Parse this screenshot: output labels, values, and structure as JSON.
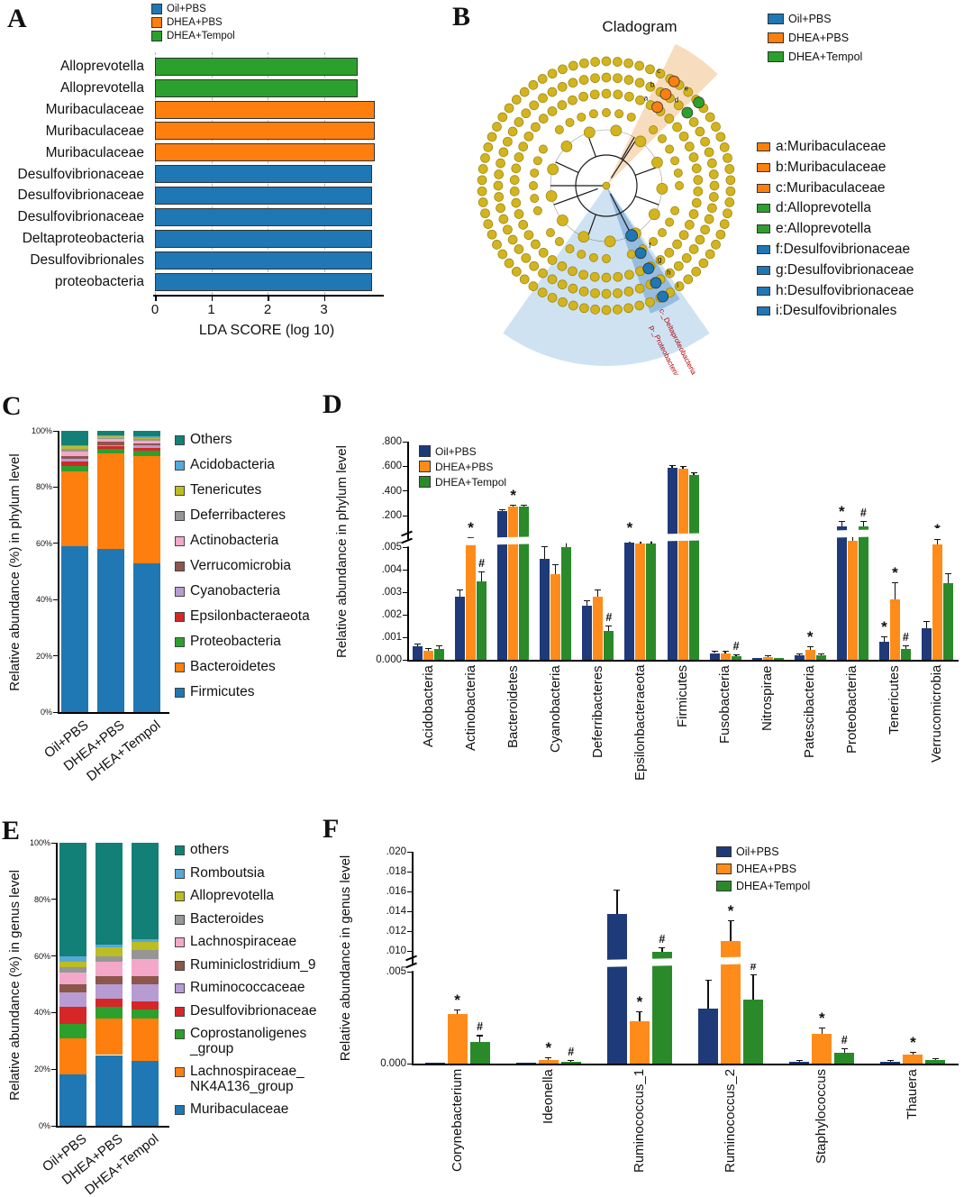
{
  "groups": [
    {
      "name": "Oil+PBS",
      "color": "#1f77b4",
      "bar_color": "#1e3a78"
    },
    {
      "name": "DHEA+PBS",
      "color": "#ff7f0e",
      "bar_color": "#ff8c1a"
    },
    {
      "name": "DHEA+Tempol",
      "color": "#2ca02c",
      "bar_color": "#2a8a2a"
    }
  ],
  "chart_data": [
    {
      "panel": "A",
      "type": "bar",
      "orientation": "horizontal",
      "xlabel": "LDA SCORE (log 10)",
      "xlim": [
        0,
        4
      ],
      "xticks": [
        0,
        1,
        2,
        3
      ],
      "legend": [
        "Oil+PBS",
        "DHEA+PBS",
        "DHEA+Tempol"
      ],
      "bars": [
        {
          "taxon": "Alloprevotella",
          "group": "DHEA+Tempol",
          "lda": 3.6
        },
        {
          "taxon": "Alloprevotella",
          "group": "DHEA+Tempol",
          "lda": 3.6
        },
        {
          "taxon": "Muribaculaceae",
          "group": "DHEA+PBS",
          "lda": 3.9
        },
        {
          "taxon": "Muribaculaceae",
          "group": "DHEA+PBS",
          "lda": 3.9
        },
        {
          "taxon": "Muribaculaceae",
          "group": "DHEA+PBS",
          "lda": 3.9
        },
        {
          "taxon": "Desulfovibrionaceae",
          "group": "Oil+PBS",
          "lda": 3.85
        },
        {
          "taxon": "Desulfovibrionaceae",
          "group": "Oil+PBS",
          "lda": 3.85
        },
        {
          "taxon": "Desulfovibrionaceae",
          "group": "Oil+PBS",
          "lda": 3.85
        },
        {
          "taxon": "Deltaproteobacteria",
          "group": "Oil+PBS",
          "lda": 3.85
        },
        {
          "taxon": "Desulfovibrionales",
          "group": "Oil+PBS",
          "lda": 3.85
        },
        {
          "taxon": "proteobacteria",
          "group": "Oil+PBS",
          "lda": 3.85
        }
      ]
    },
    {
      "panel": "B",
      "type": "cladogram",
      "title": "Cladogram",
      "legend": [
        "Oil+PBS",
        "DHEA+PBS",
        "DHEA+Tempol"
      ],
      "nodes": [
        {
          "letter": "a",
          "taxon": "Muribaculaceae",
          "group": "DHEA+PBS"
        },
        {
          "letter": "b",
          "taxon": "Muribaculaceae",
          "group": "DHEA+PBS"
        },
        {
          "letter": "c",
          "taxon": "Muribaculaceae",
          "group": "DHEA+PBS"
        },
        {
          "letter": "d",
          "taxon": "Alloprevotella",
          "group": "DHEA+Tempol"
        },
        {
          "letter": "e",
          "taxon": "Alloprevotella",
          "group": "DHEA+Tempol"
        },
        {
          "letter": "f",
          "taxon": "Desulfovibrionaceae",
          "group": "Oil+PBS"
        },
        {
          "letter": "g",
          "taxon": "Desulfovibrionaceae",
          "group": "Oil+PBS"
        },
        {
          "letter": "h",
          "taxon": "Desulfovibrionaceae",
          "group": "Oil+PBS"
        },
        {
          "letter": "i",
          "taxon": "Desulfovibrionales",
          "group": "Oil+PBS"
        }
      ],
      "red_labels": [
        "c-_Deltaproteobacteria",
        "p-_Proteobacteria"
      ]
    },
    {
      "panel": "C",
      "type": "bar",
      "subtype": "stacked",
      "ylabel": "Relative abundance (%) in phylum level",
      "categories": [
        "Oil+PBS",
        "DHEA+PBS",
        "DHEA+Tempol"
      ],
      "ytick_labels": [
        "0%",
        "20%",
        "40%",
        "60%",
        "80%",
        "100%"
      ],
      "series": [
        {
          "name": "Firmicutes",
          "color": "#1f77b4",
          "values": [
            59,
            58,
            53
          ]
        },
        {
          "name": "Bacteroidetes",
          "color": "#ff7f0e",
          "values": [
            26.5,
            34,
            38
          ]
        },
        {
          "name": "Proteobacteria",
          "color": "#2ca02c",
          "values": [
            2,
            1.5,
            2
          ]
        },
        {
          "name": "Epsilonbacteraeota",
          "color": "#d62728",
          "values": [
            1.5,
            1,
            1
          ]
        },
        {
          "name": "Cyanobacteria",
          "color": "#b79cd4",
          "values": [
            1,
            0.5,
            1
          ]
        },
        {
          "name": "Verrucomicrobia",
          "color": "#8c564b",
          "values": [
            1,
            1,
            0.5
          ]
        },
        {
          "name": "Actinobacteria",
          "color": "#f3a8c9",
          "values": [
            1.5,
            1,
            1
          ]
        },
        {
          "name": "Deferribacteres",
          "color": "#969696",
          "values": [
            1,
            0.5,
            0.5
          ]
        },
        {
          "name": "Tenericutes",
          "color": "#bcbd22",
          "values": [
            1,
            0.5,
            0.5
          ]
        },
        {
          "name": "Acidobacteria",
          "color": "#56a8d8",
          "values": [
            0.5,
            0.5,
            0.5
          ]
        },
        {
          "name": "Others",
          "color": "#128076",
          "values": [
            5,
            1.5,
            2
          ]
        }
      ]
    },
    {
      "panel": "D",
      "type": "bar",
      "subtype": "grouped-broken-axis",
      "ylabel": "Relative abundance in phylum level",
      "legend": [
        "Oil+PBS",
        "DHEA+PBS",
        "DHEA+Tempol"
      ],
      "lower_axis": {
        "tick_values": [
          0,
          0.001,
          0.002,
          0.003,
          0.004,
          0.005
        ],
        "tick_labels": [
          "0.000",
          ".001",
          ".002",
          ".003",
          ".004",
          ".005"
        ]
      },
      "upper_axis": {
        "tick_values": [
          0.2,
          0.4,
          0.6,
          0.8
        ],
        "tick_labels": [
          ".200",
          ".400",
          ".600",
          ".800"
        ]
      },
      "categories": [
        "Acidobacteria",
        "Actinobacteria",
        "Bacteroidetes",
        "Cyanobacteria",
        "Deferribacteres",
        "Epsilonbacteraeota",
        "Firmicutes",
        "Fusobacteria",
        "Nitrospirae",
        "Patescibacteria",
        "Proteobacteria",
        "Tenericutes",
        "Verrucomicrobia"
      ],
      "series": [
        {
          "name": "Oil+PBS",
          "values": [
            0.0006,
            0.0028,
            0.235,
            0.0045,
            0.0024,
            0.0055,
            0.59,
            0.0003,
            0.0001,
            0.0002,
            0.016,
            0.0008,
            0.0014
          ],
          "errors": [
            0.0001,
            0.0003,
            0.01,
            0.0005,
            0.0002,
            0.0003,
            0.015,
            7e-05,
            3e-05,
            5e-05,
            0.003,
            0.0002,
            0.0003
          ]
        },
        {
          "name": "DHEA+PBS",
          "values": [
            0.0004,
            0.0055,
            0.27,
            0.0038,
            0.0028,
            0.0053,
            0.58,
            0.0003,
            0.00012,
            0.00045,
            0.006,
            0.0027,
            0.0052
          ],
          "errors": [
            8e-05,
            0.0004,
            0.012,
            0.0004,
            0.0003,
            0.0002,
            0.015,
            8e-05,
            4e-05,
            0.0001,
            0.0008,
            0.0007,
            0.0005
          ]
        },
        {
          "name": "DHEA+Tempol",
          "values": [
            0.0005,
            0.0035,
            0.27,
            0.005,
            0.0013,
            0.0053,
            0.53,
            0.00015,
            0.0001,
            0.0002,
            0.016,
            0.0005,
            0.0034
          ],
          "errors": [
            0.0001,
            0.0004,
            0.01,
            0.0003,
            0.0002,
            0.0002,
            0.015,
            4e-05,
            3e-05,
            5e-05,
            0.003,
            0.0001,
            0.0004
          ]
        }
      ],
      "annotations": [
        {
          "category": "Actinobacteria",
          "series": "DHEA+PBS",
          "symbol": "*"
        },
        {
          "category": "Actinobacteria",
          "series": "DHEA+Tempol",
          "symbol": "#"
        },
        {
          "category": "Bacteroidetes",
          "series": "DHEA+PBS",
          "symbol": "*"
        },
        {
          "category": "Deferribacteres",
          "series": "DHEA+Tempol",
          "symbol": "#"
        },
        {
          "category": "Epsilonbacteraeota",
          "series": "Oil+PBS",
          "symbol": "*"
        },
        {
          "category": "Fusobacteria",
          "series": "DHEA+Tempol",
          "symbol": "#"
        },
        {
          "category": "Patescibacteria",
          "series": "DHEA+PBS",
          "symbol": "*"
        },
        {
          "category": "Patescibacteria",
          "series": "DHEA+T empol",
          "symbol": "#"
        },
        {
          "category": "Proteobacteria",
          "series": "Oil+PBS",
          "symbol": "*"
        },
        {
          "category": "Proteobacteria",
          "series": "DHEA+Tempol",
          "symbol": "#"
        },
        {
          "category": "Tenericutes",
          "series": "Oil+PBS",
          "symbol": "*"
        },
        {
          "category": "Tenericutes",
          "series": "DHEA+PBS",
          "symbol": "*"
        },
        {
          "category": "Tenericutes",
          "series": "DHEA+Tempol",
          "symbol": "#"
        },
        {
          "category": "Verrucomicrobia",
          "series": "DHEA+PBS",
          "symbol": "*"
        }
      ]
    },
    {
      "panel": "E",
      "type": "bar",
      "subtype": "stacked",
      "ylabel": "Relative abundance (%) in genus level",
      "categories": [
        "Oil+PBS",
        "DHEA+PBS",
        "DHEA+Tempol"
      ],
      "ytick_labels": [
        "0%",
        "20%",
        "40%",
        "60%",
        "80%",
        "100%"
      ],
      "series": [
        {
          "name": "Muribaculaceae",
          "color": "#1f77b4",
          "values": [
            18,
            25,
            23
          ]
        },
        {
          "name": "Lachnospiraceae_NK4A136_group",
          "legend_label": "Lachnospiraceae_\nNK4A136_group",
          "color": "#ff7f0e",
          "values": [
            13,
            13,
            15
          ]
        },
        {
          "name": "Coprostanoligenes_group",
          "legend_label": "Coprostanoligenes\n_group",
          "color": "#2ca02c",
          "values": [
            5,
            4,
            3
          ]
        },
        {
          "name": "Desulfovibrionaceae",
          "color": "#d62728",
          "values": [
            6,
            3,
            3
          ]
        },
        {
          "name": "Ruminococcaceae",
          "color": "#b79cd4",
          "values": [
            5,
            5,
            6
          ]
        },
        {
          "name": "Ruminiclostridium_9",
          "color": "#8c564b",
          "values": [
            3,
            3,
            3
          ]
        },
        {
          "name": "Lachnospiraceae",
          "color": "#f3a8c9",
          "values": [
            4,
            5,
            6
          ]
        },
        {
          "name": "Bacteroides",
          "color": "#969696",
          "values": [
            2,
            2,
            3
          ]
        },
        {
          "name": "Alloprevotella",
          "color": "#bcbd22",
          "values": [
            2,
            3,
            3
          ]
        },
        {
          "name": "Romboutsia",
          "color": "#56a8d8",
          "values": [
            2,
            1,
            1
          ]
        },
        {
          "name": "others",
          "color": "#128076",
          "values": [
            40,
            36,
            34
          ]
        }
      ]
    },
    {
      "panel": "F",
      "type": "bar",
      "subtype": "grouped-broken-axis",
      "ylabel": "Relative abundance in genus level",
      "legend": [
        "Oil+PBS",
        "DHEA+PBS",
        "DHEA+Tempol"
      ],
      "lower_axis": {
        "tick_values": [
          0,
          0.005
        ],
        "tick_labels": [
          "0.000",
          ".005"
        ]
      },
      "upper_axis": {
        "tick_values": [
          0.01,
          0.012,
          0.014,
          0.016,
          0.018,
          0.02
        ],
        "tick_labels": [
          ".010",
          ".012",
          ".014",
          ".016",
          ".018",
          ".020"
        ]
      },
      "categories": [
        "Corynebacterium",
        "Ideonella",
        "Ruminococcus_1",
        "Ruminococcus_2",
        "Staphylococcus",
        "Thauera"
      ],
      "series": [
        {
          "name": "Oil+PBS",
          "values": [
            5e-05,
            4e-05,
            0.0137,
            0.003,
            0.0001,
            0.0001
          ],
          "errors": [
            2e-05,
            2e-05,
            0.0024,
            0.0015,
            5e-05,
            5e-05
          ]
        },
        {
          "name": "DHEA+PBS",
          "values": [
            0.0027,
            0.0002,
            0.0023,
            0.011,
            0.0016,
            0.0005
          ],
          "errors": [
            0.0002,
            8e-05,
            0.0005,
            0.002,
            0.0003,
            0.0001
          ]
        },
        {
          "name": "DHEA+Tempol",
          "values": [
            0.0012,
            0.0001,
            0.0098,
            0.0035,
            0.0006,
            0.0002
          ],
          "errors": [
            0.0003,
            4e-05,
            0.0008,
            0.0013,
            0.0002,
            6e-05
          ]
        }
      ],
      "annotations": [
        {
          "category": "Corynebacterium",
          "series": "DHEA+PBS",
          "symbol": "*"
        },
        {
          "category": "Corynebacterium",
          "series": "DHEA+Tempol",
          "symbol": "#"
        },
        {
          "category": "Ideonella",
          "series": "DHEA+PBS",
          "symbol": "*"
        },
        {
          "category": "Ideonella",
          "series": "DHEA+Tempol",
          "symbol": "#"
        },
        {
          "category": "Ruminococcus_1",
          "series": "DHEA+PBS",
          "symbol": "*"
        },
        {
          "category": "Ruminococcus_1",
          "series": "DHEA+Tempol",
          "symbol": "#"
        },
        {
          "category": "Ruminococcus_2",
          "series": "DHEA+PBS",
          "symbol": "*"
        },
        {
          "category": "Ruminococcus_2",
          "series": "DHEA+Tempol",
          "symbol": "#"
        },
        {
          "category": "Staphylococcus",
          "series": "DHEA+PBS",
          "symbol": "*"
        },
        {
          "category": "Staphylococcus",
          "series": "DHEA+Tempol",
          "symbol": "#"
        },
        {
          "category": "Thauera",
          "series": "DHEA+PBS",
          "symbol": "*"
        }
      ]
    }
  ]
}
